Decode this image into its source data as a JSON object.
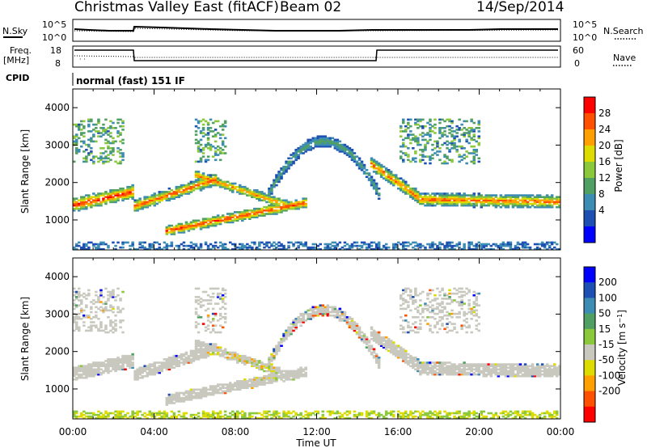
{
  "header": {
    "title": "Christmas Valley East (fitACF)",
    "beam": "Beam 02",
    "date": "14/Sep/2014"
  },
  "noise_panel": {
    "left_label": "N.Sky",
    "left_ticks": [
      "10^5",
      "10^0"
    ],
    "right_ticks": [
      "10^5",
      "10^0"
    ],
    "right_label": "N.Search"
  },
  "freq_panel": {
    "left_label_top": "Freq.",
    "left_label_bottom": "[MHz]",
    "left_ticks": [
      "18",
      "8"
    ],
    "right_ticks": [
      "60",
      "0"
    ],
    "right_label": "Nave"
  },
  "cpid": {
    "label": "CPID",
    "value": "normal (fast) 151 IF"
  },
  "colors": {
    "ground_scatter": "#c8c8be",
    "panel_border": "#000000"
  },
  "chart_data": [
    {
      "type": "heatmap",
      "name": "Power",
      "ylabel": "Slant Range [km]",
      "ylim": [
        200,
        4500
      ],
      "yticks": [
        "1000",
        "2000",
        "3000",
        "4000"
      ],
      "xlim": [
        0,
        24
      ],
      "xticks": [
        "00:00",
        "04:00",
        "08:00",
        "12:00",
        "16:00",
        "20:00",
        "00:00"
      ],
      "colorbar": {
        "label": "Power [dB]",
        "ticks": [
          "4",
          "8",
          "12",
          "16",
          "20",
          "24",
          "28"
        ],
        "range": [
          0,
          30
        ],
        "colors": [
          "#0000ff",
          "#1e50b4",
          "#3c8cb4",
          "#50a064",
          "#8cc83c",
          "#dcdc00",
          "#ffa000",
          "#ff5000",
          "#ff0000"
        ]
      }
    },
    {
      "type": "heatmap",
      "name": "Velocity",
      "ylabel": "Slant Range [km]",
      "ylim": [
        200,
        4500
      ],
      "yticks": [
        "1000",
        "2000",
        "3000",
        "4000"
      ],
      "xlim": [
        0,
        24
      ],
      "xticks": [
        "00:00",
        "04:00",
        "08:00",
        "12:00",
        "16:00",
        "20:00",
        "00:00"
      ],
      "xlabel": "Time UT",
      "colorbar": {
        "label": "Velocity [m s^-1]",
        "ticks": [
          "200",
          "100",
          "50",
          "15",
          "-15",
          "-50",
          "-100",
          "-200"
        ],
        "colors": [
          "#0000ff",
          "#1e50b4",
          "#3c8cb4",
          "#50a064",
          "#8cc83c",
          "#c8c8be",
          "#dcdc00",
          "#ffa000",
          "#ff5000",
          "#ff0000"
        ]
      }
    }
  ]
}
